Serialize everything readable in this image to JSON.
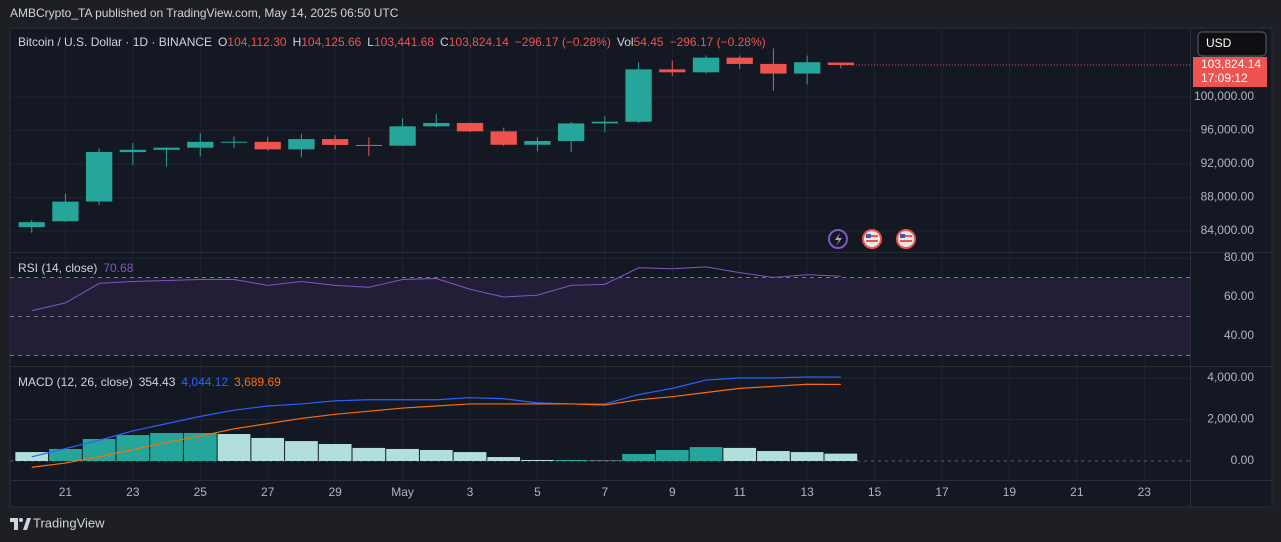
{
  "header": {
    "attribution": "AMBCrypto_TA published on TradingView.com, May 14, 2025 06:50 UTC",
    "currency": "USD",
    "brand": "TradingView"
  },
  "chart_data": [
    {
      "type": "candlestick",
      "title": "Bitcoin / U.S. Dollar · 1D · BINANCE",
      "legend": [
        {
          "key": "O",
          "text": "104,112.30"
        },
        {
          "key": "H",
          "text": "104,125.66"
        },
        {
          "key": "L",
          "text": "103,441.68"
        },
        {
          "key": "C",
          "text": "103,824.14"
        },
        {
          "text": "−296.17 (−0.28%)"
        },
        {
          "key": "Vol",
          "text": "54.45"
        },
        {
          "text": "−296.17 (−0.28%)"
        }
      ],
      "x": [
        "2025-04-20",
        "2025-04-21",
        "2025-04-22",
        "2025-04-23",
        "2025-04-24",
        "2025-04-25",
        "2025-04-26",
        "2025-04-27",
        "2025-04-28",
        "2025-04-29",
        "2025-04-30",
        "2025-05-01",
        "2025-05-02",
        "2025-05-03",
        "2025-05-04",
        "2025-05-05",
        "2025-05-06",
        "2025-05-07",
        "2025-05-08",
        "2025-05-09",
        "2025-05-10",
        "2025-05-11",
        "2025-05-12",
        "2025-05-13",
        "2025-05-14"
      ],
      "open": [
        84470,
        85170,
        87520,
        93420,
        93700,
        93950,
        94650,
        94650,
        93750,
        94980,
        94280,
        94190,
        96500,
        96900,
        95900,
        94300,
        94750,
        96850,
        97050,
        103300,
        102950,
        104700,
        103950,
        102800,
        104112.3
      ],
      "high": [
        85320,
        88460,
        93860,
        94500,
        94000,
        95700,
        95300,
        95250,
        95600,
        95450,
        95200,
        97450,
        97950,
        96950,
        96350,
        95200,
        97000,
        97700,
        104150,
        104350,
        104950,
        104950,
        105800,
        104950,
        104125.66
      ],
      "low": [
        83800,
        85100,
        87100,
        91900,
        91700,
        92900,
        93900,
        93600,
        92800,
        93750,
        92950,
        94150,
        96400,
        95800,
        94150,
        93500,
        93400,
        95800,
        96900,
        102500,
        102800,
        103350,
        100750,
        101500,
        103441.68
      ],
      "close": [
        85060,
        87510,
        93440,
        93700,
        93950,
        94650,
        94660,
        93750,
        94980,
        94280,
        94190,
        96500,
        96900,
        95900,
        94300,
        94750,
        96850,
        97050,
        103300,
        102950,
        104700,
        103950,
        102800,
        104150,
        103824.14
      ],
      "up_color": "#26a69a",
      "down_color": "#ef5350",
      "xlim": [
        "2025-04-19",
        "2025-05-24"
      ],
      "xticks": [
        {
          "value": "2025-04-21",
          "label": "21"
        },
        {
          "value": "2025-04-23",
          "label": "23"
        },
        {
          "value": "2025-04-25",
          "label": "25"
        },
        {
          "value": "2025-04-27",
          "label": "27"
        },
        {
          "value": "2025-04-29",
          "label": "29"
        },
        {
          "value": "2025-05-01",
          "label": "May"
        },
        {
          "value": "2025-05-03",
          "label": "3"
        },
        {
          "value": "2025-05-05",
          "label": "5"
        },
        {
          "value": "2025-05-07",
          "label": "7"
        },
        {
          "value": "2025-05-09",
          "label": "9"
        },
        {
          "value": "2025-05-11",
          "label": "11"
        },
        {
          "value": "2025-05-13",
          "label": "13"
        },
        {
          "value": "2025-05-15",
          "label": "15"
        },
        {
          "value": "2025-05-17",
          "label": "17"
        },
        {
          "value": "2025-05-19",
          "label": "19"
        },
        {
          "value": "2025-05-21",
          "label": "21"
        },
        {
          "value": "2025-05-23",
          "label": "23"
        }
      ],
      "ylim": [
        81500,
        108000
      ],
      "yticks": [
        {
          "value": 84000,
          "label": "84,000.00"
        },
        {
          "value": 88000,
          "label": "88,000.00"
        },
        {
          "value": 92000,
          "label": "92,000.00"
        },
        {
          "value": 96000,
          "label": "96,000.00"
        },
        {
          "value": 100000,
          "label": "100,000.00"
        }
      ],
      "last_label": "103,824.14",
      "countdown": "17:09:12",
      "grid": true
    },
    {
      "type": "line",
      "title": "RSI (14, close)",
      "value_label": "70.68",
      "color": "#7e57c2",
      "values": [
        53,
        57,
        67,
        68,
        68.5,
        69,
        69,
        66,
        68,
        66,
        65,
        69,
        69.5,
        64,
        60,
        61,
        66,
        66.5,
        75,
        74.5,
        75.5,
        72.5,
        70,
        71.5,
        70.68
      ],
      "ylim": [
        24.6,
        82.6
      ],
      "yticks": [
        {
          "value": 40,
          "label": "40.00"
        },
        {
          "value": 60,
          "label": "60.00"
        },
        {
          "value": 80,
          "label": "80.00"
        }
      ],
      "levels": [
        70,
        50,
        30
      ],
      "band_color": "#2a2140"
    },
    {
      "type": "macd",
      "title": "MACD (12, 26, close)",
      "histogram": {
        "value_label": "354.43",
        "rise_color": "#26a69a",
        "fall_color": "#b2dfdb",
        "values": [
          430,
          580,
          1060,
          1250,
          1350,
          1350,
          1300,
          1110,
          960,
          820,
          630,
          580,
          530,
          430,
          190,
          50,
          50,
          20,
          340,
          530,
          670,
          630,
          480,
          430,
          354.43
        ]
      },
      "macd": {
        "value_label": "4,044.12",
        "color": "#2962ff",
        "values": [
          200,
          600,
          1000,
          1450,
          1800,
          2150,
          2450,
          2650,
          2750,
          2900,
          2950,
          2950,
          2950,
          3050,
          3000,
          2800,
          2750,
          2750,
          3200,
          3500,
          3900,
          4000,
          4000,
          4050,
          4044.12
        ]
      },
      "signal": {
        "value_label": "3,689.69",
        "color": "#ff6d00",
        "values": [
          -300,
          -100,
          200,
          550,
          900,
          1200,
          1550,
          1800,
          2050,
          2250,
          2400,
          2550,
          2650,
          2750,
          2750,
          2750,
          2750,
          2700,
          2950,
          3100,
          3300,
          3500,
          3600,
          3700,
          3689.69
        ]
      },
      "ylim": [
        -916,
        4530
      ],
      "yticks": [
        {
          "value": 0,
          "label": "0.00"
        },
        {
          "value": 2000,
          "label": "2,000.00"
        },
        {
          "value": 4000,
          "label": "4,000.00"
        }
      ]
    }
  ]
}
